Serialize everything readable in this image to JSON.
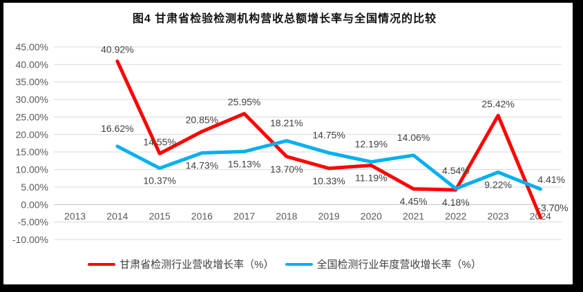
{
  "chart_data": {
    "type": "line",
    "title": "图4 甘肃省检验检测机构营收总额增长率与全国情况的比较",
    "categories": [
      "2013",
      "2014",
      "2015",
      "2016",
      "2017",
      "2018",
      "2019",
      "2020",
      "2021",
      "2022",
      "2023",
      "2024"
    ],
    "yticks": [
      "45.00%",
      "40.00%",
      "35.00%",
      "30.00%",
      "25.00%",
      "20.00%",
      "15.00%",
      "10.00%",
      "5.00%",
      "0.00%",
      "-5.00%",
      "-10.00%"
    ],
    "ylim": [
      -10,
      45
    ],
    "grid": true,
    "legend_position": "bottom",
    "series": [
      {
        "name": "甘肃省检测行业营收增长率（%）",
        "color": "#FF0000",
        "values": [
          null,
          40.92,
          14.55,
          20.85,
          25.95,
          13.7,
          10.33,
          11.19,
          4.45,
          4.18,
          25.42,
          -3.7
        ],
        "labels": [
          "",
          "40.92%",
          "14.55%",
          "20.85%",
          "25.95%",
          "13.70%",
          "10.33%",
          "11.19%",
          "4.45%",
          "4.18%",
          "25.42%",
          "-3.70%"
        ],
        "label_pos": [
          "",
          "above",
          "above",
          "above",
          "above",
          "below",
          "below",
          "below",
          "below",
          "below",
          "above",
          "right"
        ]
      },
      {
        "name": "全国检测行业年度营收增长率（%）",
        "color": "#00B0F0",
        "values": [
          null,
          16.62,
          10.37,
          14.73,
          15.13,
          18.21,
          14.75,
          12.19,
          14.06,
          4.54,
          9.22,
          4.41
        ],
        "labels": [
          "",
          "16.62%",
          "10.37%",
          "14.73%",
          "15.13%",
          "18.21%",
          "14.75%",
          "12.19%",
          "14.06%",
          "4.54%",
          "9.22%",
          "4.41%"
        ],
        "label_pos": [
          "",
          "above",
          "below",
          "below",
          "below",
          "above",
          "above",
          "above",
          "above",
          "above",
          "below",
          "right"
        ]
      }
    ],
    "colors": {
      "gridline": "#D9D9D9",
      "axis_line": "#BFBFBF",
      "tick_text": "#595959",
      "data_label_text": "#404040"
    }
  }
}
